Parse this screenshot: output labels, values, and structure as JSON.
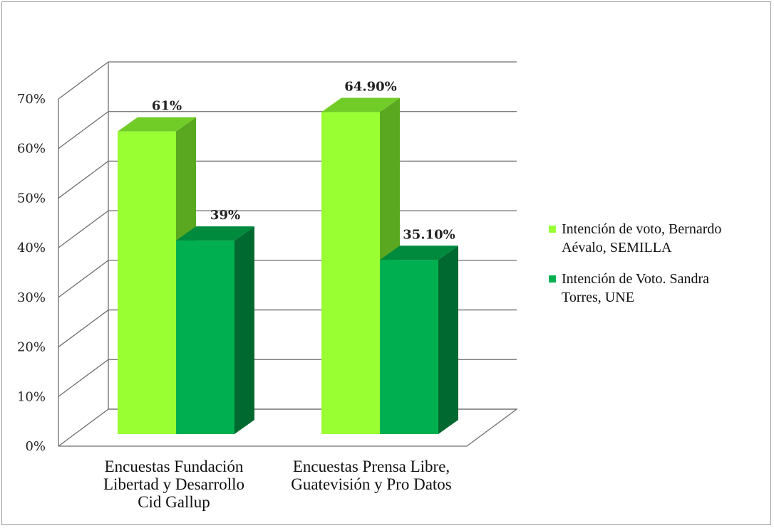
{
  "chart_data": {
    "type": "bar",
    "style": "3d-clustered-column",
    "categories": [
      [
        "Encuestas Fundación",
        "Libertad y Desarrollo",
        "Cid Gallup"
      ],
      [
        "Encuestas Prensa Libre,",
        "Guatevisión y Pro Datos"
      ]
    ],
    "series": [
      {
        "name": [
          "Intención de voto, Bernardo",
          "Aévalo, SEMILLA"
        ],
        "values": [
          61,
          64.9
        ],
        "labels": [
          "61%",
          "64.90%"
        ],
        "color": "#99ff33",
        "side_color": "#5aa81f",
        "top_color": "#72cc28"
      },
      {
        "name": [
          "Intención de  Voto. Sandra",
          "Torres, UNE"
        ],
        "values": [
          39,
          35.1
        ],
        "labels": [
          "39%",
          "35.10%"
        ],
        "color": "#00b050",
        "side_color": "#00692f",
        "top_color": "#008a3e"
      }
    ],
    "ylim": [
      0,
      70
    ],
    "yticks": [
      "0%",
      "10%",
      "20%",
      "30%",
      "40%",
      "50%",
      "60%",
      "70%"
    ],
    "grid": true,
    "legend_position": "right"
  }
}
